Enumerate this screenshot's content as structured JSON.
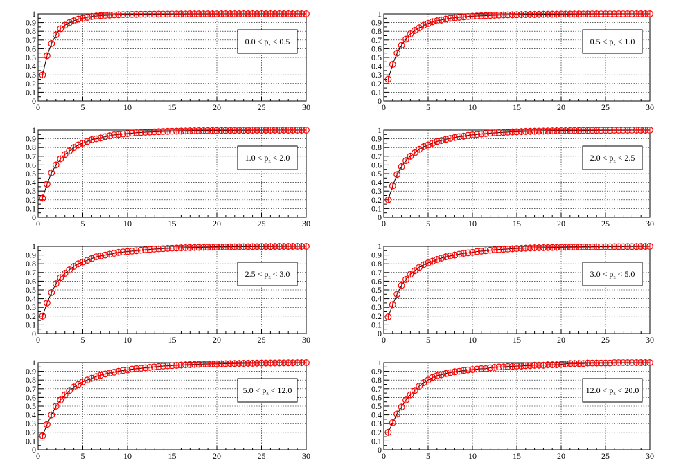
{
  "chart_data": [
    {
      "type": "line",
      "label_parts": [
        "0.0 < p",
        "z",
        " < 0.5"
      ],
      "xlim": [
        0,
        30
      ],
      "ylim": [
        0,
        1
      ],
      "x_ticks": [
        "0",
        "5",
        "10",
        "15",
        "20",
        "25",
        "30"
      ],
      "y_ticks": [
        "0",
        "0.1",
        "0.2",
        "0.3",
        "0.4",
        "0.5",
        "0.6",
        "0.7",
        "0.8",
        "0.9",
        "1"
      ],
      "grid": true,
      "legend_position": "right",
      "marker_color": "#ff0000",
      "x": [
        0.5,
        1,
        1.5,
        2,
        2.5,
        3,
        3.5,
        4,
        4.5,
        5,
        5.5,
        6,
        6.5,
        7,
        7.5,
        8,
        8.5,
        9,
        9.5,
        10,
        10.5,
        11,
        11.5,
        12,
        12.5,
        13,
        13.5,
        14,
        14.5,
        15,
        15.5,
        16,
        16.5,
        17,
        17.5,
        18,
        18.5,
        19,
        19.5,
        20,
        20.5,
        21,
        21.5,
        22,
        22.5,
        23,
        23.5,
        24,
        24.5,
        25,
        25.5,
        26,
        26.5,
        27,
        27.5,
        28,
        28.5,
        29,
        29.5,
        30
      ],
      "y": [
        0.3,
        0.52,
        0.66,
        0.76,
        0.83,
        0.87,
        0.9,
        0.92,
        0.94,
        0.95,
        0.96,
        0.97,
        0.975,
        0.98,
        0.983,
        0.986,
        0.988,
        0.99,
        0.991,
        0.992,
        0.993,
        0.994,
        0.995,
        0.995,
        0.996,
        0.996,
        0.997,
        0.997,
        0.997,
        0.998,
        0.998,
        0.998,
        0.998,
        0.999,
        0.999,
        0.999,
        0.999,
        0.999,
        0.999,
        0.999,
        1,
        1,
        1,
        1,
        1,
        1,
        1,
        1,
        1,
        1,
        1,
        1,
        1,
        1,
        1,
        1,
        1,
        1,
        1,
        1
      ]
    },
    {
      "type": "line",
      "label_parts": [
        "0.5 < p",
        "z",
        " < 1.0"
      ],
      "xlim": [
        0,
        30
      ],
      "ylim": [
        0,
        1
      ],
      "x_ticks": [
        "0",
        "5",
        "10",
        "15",
        "20",
        "25",
        "30"
      ],
      "y_ticks": [
        "0",
        "0.1",
        "0.2",
        "0.3",
        "0.4",
        "0.5",
        "0.6",
        "0.7",
        "0.8",
        "0.9",
        "1"
      ],
      "grid": true,
      "legend_position": "right",
      "marker_color": "#ff0000",
      "x": [
        0.5,
        1,
        1.5,
        2,
        2.5,
        3,
        3.5,
        4,
        4.5,
        5,
        5.5,
        6,
        6.5,
        7,
        7.5,
        8,
        8.5,
        9,
        9.5,
        10,
        10.5,
        11,
        11.5,
        12,
        12.5,
        13,
        13.5,
        14,
        14.5,
        15,
        15.5,
        16,
        16.5,
        17,
        17.5,
        18,
        18.5,
        19,
        19.5,
        20,
        20.5,
        21,
        21.5,
        22,
        22.5,
        23,
        23.5,
        24,
        24.5,
        25,
        25.5,
        26,
        26.5,
        27,
        27.5,
        28,
        28.5,
        29,
        29.5,
        30
      ],
      "y": [
        0.25,
        0.42,
        0.55,
        0.64,
        0.71,
        0.77,
        0.81,
        0.84,
        0.87,
        0.89,
        0.91,
        0.92,
        0.93,
        0.94,
        0.95,
        0.955,
        0.96,
        0.965,
        0.97,
        0.973,
        0.976,
        0.978,
        0.98,
        0.982,
        0.984,
        0.986,
        0.987,
        0.988,
        0.989,
        0.99,
        0.991,
        0.992,
        0.993,
        0.993,
        0.994,
        0.995,
        0.995,
        0.996,
        0.996,
        0.997,
        0.997,
        0.997,
        0.998,
        0.998,
        0.998,
        0.998,
        0.999,
        0.999,
        0.999,
        0.999,
        0.999,
        0.999,
        1,
        1,
        1,
        1,
        1,
        1,
        1,
        1
      ]
    },
    {
      "type": "line",
      "label_parts": [
        "1.0 < p",
        "z",
        " < 2.0"
      ],
      "xlim": [
        0,
        30
      ],
      "ylim": [
        0,
        1
      ],
      "x_ticks": [
        "0",
        "5",
        "10",
        "15",
        "20",
        "25",
        "30"
      ],
      "y_ticks": [
        "0",
        "0.1",
        "0.2",
        "0.3",
        "0.4",
        "0.5",
        "0.6",
        "0.7",
        "0.8",
        "0.9",
        "1"
      ],
      "grid": true,
      "legend_position": "right",
      "marker_color": "#ff0000",
      "x": [
        0.5,
        1,
        1.5,
        2,
        2.5,
        3,
        3.5,
        4,
        4.5,
        5,
        5.5,
        6,
        6.5,
        7,
        7.5,
        8,
        8.5,
        9,
        9.5,
        10,
        10.5,
        11,
        11.5,
        12,
        12.5,
        13,
        13.5,
        14,
        14.5,
        15,
        15.5,
        16,
        16.5,
        17,
        17.5,
        18,
        18.5,
        19,
        19.5,
        20,
        20.5,
        21,
        21.5,
        22,
        22.5,
        23,
        23.5,
        24,
        24.5,
        25,
        25.5,
        26,
        26.5,
        27,
        27.5,
        28,
        28.5,
        29,
        29.5,
        30
      ],
      "y": [
        0.22,
        0.38,
        0.51,
        0.6,
        0.67,
        0.72,
        0.76,
        0.8,
        0.83,
        0.85,
        0.87,
        0.89,
        0.9,
        0.91,
        0.925,
        0.935,
        0.945,
        0.95,
        0.955,
        0.96,
        0.965,
        0.97,
        0.973,
        0.976,
        0.978,
        0.98,
        0.982,
        0.984,
        0.986,
        0.987,
        0.988,
        0.989,
        0.99,
        0.991,
        0.992,
        0.993,
        0.993,
        0.994,
        0.995,
        0.995,
        0.996,
        0.996,
        0.997,
        0.997,
        0.998,
        0.998,
        0.998,
        0.999,
        0.999,
        0.999,
        0.999,
        1,
        1,
        1,
        1,
        1,
        1,
        1,
        1,
        1
      ]
    },
    {
      "type": "line",
      "label_parts": [
        "2.0 < p",
        "z",
        " < 2.5"
      ],
      "xlim": [
        0,
        30
      ],
      "ylim": [
        0,
        1
      ],
      "x_ticks": [
        "0",
        "5",
        "10",
        "15",
        "20",
        "25",
        "30"
      ],
      "y_ticks": [
        "0",
        "0.1",
        "0.2",
        "0.3",
        "0.4",
        "0.5",
        "0.6",
        "0.7",
        "0.8",
        "0.9",
        "1"
      ],
      "grid": true,
      "legend_position": "right",
      "marker_color": "#ff0000",
      "x": [
        0.5,
        1,
        1.5,
        2,
        2.5,
        3,
        3.5,
        4,
        4.5,
        5,
        5.5,
        6,
        6.5,
        7,
        7.5,
        8,
        8.5,
        9,
        9.5,
        10,
        10.5,
        11,
        11.5,
        12,
        12.5,
        13,
        13.5,
        14,
        14.5,
        15,
        15.5,
        16,
        16.5,
        17,
        17.5,
        18,
        18.5,
        19,
        19.5,
        20,
        20.5,
        21,
        21.5,
        22,
        22.5,
        23,
        23.5,
        24,
        24.5,
        25,
        25.5,
        26,
        26.5,
        27,
        27.5,
        28,
        28.5,
        29,
        29.5,
        30
      ],
      "y": [
        0.2,
        0.36,
        0.49,
        0.58,
        0.65,
        0.7,
        0.74,
        0.78,
        0.81,
        0.83,
        0.85,
        0.87,
        0.88,
        0.895,
        0.905,
        0.915,
        0.925,
        0.93,
        0.94,
        0.945,
        0.95,
        0.955,
        0.96,
        0.965,
        0.968,
        0.971,
        0.974,
        0.977,
        0.979,
        0.981,
        0.983,
        0.985,
        0.986,
        0.987,
        0.988,
        0.989,
        0.99,
        0.991,
        0.992,
        0.993,
        0.993,
        0.994,
        0.995,
        0.995,
        0.996,
        0.996,
        0.997,
        0.997,
        0.998,
        0.998,
        0.998,
        0.999,
        0.999,
        0.999,
        0.999,
        1,
        1,
        1,
        1,
        1
      ]
    },
    {
      "type": "line",
      "label_parts": [
        "2.5 < p",
        "z",
        " < 3.0"
      ],
      "xlim": [
        0,
        30
      ],
      "ylim": [
        0,
        1
      ],
      "x_ticks": [
        "0",
        "5",
        "10",
        "15",
        "20",
        "25",
        "30"
      ],
      "y_ticks": [
        "0",
        "0.1",
        "0.2",
        "0.3",
        "0.4",
        "0.5",
        "0.6",
        "0.7",
        "0.8",
        "0.9",
        "1"
      ],
      "grid": true,
      "legend_position": "right",
      "marker_color": "#ff0000",
      "x": [
        0.5,
        1,
        1.5,
        2,
        2.5,
        3,
        3.5,
        4,
        4.5,
        5,
        5.5,
        6,
        6.5,
        7,
        7.5,
        8,
        8.5,
        9,
        9.5,
        10,
        10.5,
        11,
        11.5,
        12,
        12.5,
        13,
        13.5,
        14,
        14.5,
        15,
        15.5,
        16,
        16.5,
        17,
        17.5,
        18,
        18.5,
        19,
        19.5,
        20,
        20.5,
        21,
        21.5,
        22,
        22.5,
        23,
        23.5,
        24,
        24.5,
        25,
        25.5,
        26,
        26.5,
        27,
        27.5,
        28,
        28.5,
        29,
        29.5,
        30
      ],
      "y": [
        0.2,
        0.35,
        0.47,
        0.57,
        0.64,
        0.69,
        0.73,
        0.77,
        0.8,
        0.82,
        0.84,
        0.86,
        0.88,
        0.89,
        0.9,
        0.91,
        0.92,
        0.93,
        0.935,
        0.94,
        0.945,
        0.95,
        0.955,
        0.96,
        0.964,
        0.968,
        0.971,
        0.974,
        0.977,
        0.979,
        0.981,
        0.983,
        0.985,
        0.986,
        0.987,
        0.988,
        0.989,
        0.99,
        0.991,
        0.992,
        0.993,
        0.993,
        0.994,
        0.995,
        0.995,
        0.996,
        0.996,
        0.997,
        0.997,
        0.998,
        0.998,
        0.998,
        0.999,
        0.999,
        0.999,
        0.999,
        1,
        1,
        1,
        1
      ]
    },
    {
      "type": "line",
      "label_parts": [
        "3.0 < p",
        "z",
        " < 5.0"
      ],
      "xlim": [
        0,
        30
      ],
      "ylim": [
        0,
        1
      ],
      "x_ticks": [
        "0",
        "5",
        "10",
        "15",
        "20",
        "25",
        "30"
      ],
      "y_ticks": [
        "0",
        "0.1",
        "0.2",
        "0.3",
        "0.4",
        "0.5",
        "0.6",
        "0.7",
        "0.8",
        "0.9",
        "1"
      ],
      "grid": true,
      "legend_position": "right",
      "marker_color": "#ff0000",
      "x": [
        0.5,
        1,
        1.5,
        2,
        2.5,
        3,
        3.5,
        4,
        4.5,
        5,
        5.5,
        6,
        6.5,
        7,
        7.5,
        8,
        8.5,
        9,
        9.5,
        10,
        10.5,
        11,
        11.5,
        12,
        12.5,
        13,
        13.5,
        14,
        14.5,
        15,
        15.5,
        16,
        16.5,
        17,
        17.5,
        18,
        18.5,
        19,
        19.5,
        20,
        20.5,
        21,
        21.5,
        22,
        22.5,
        23,
        23.5,
        24,
        24.5,
        25,
        25.5,
        26,
        26.5,
        27,
        27.5,
        28,
        28.5,
        29,
        29.5,
        30
      ],
      "y": [
        0.19,
        0.33,
        0.45,
        0.55,
        0.62,
        0.68,
        0.72,
        0.76,
        0.79,
        0.81,
        0.83,
        0.85,
        0.865,
        0.88,
        0.89,
        0.9,
        0.91,
        0.92,
        0.925,
        0.93,
        0.94,
        0.945,
        0.95,
        0.955,
        0.96,
        0.963,
        0.966,
        0.969,
        0.972,
        0.975,
        0.977,
        0.979,
        0.981,
        0.983,
        0.984,
        0.985,
        0.986,
        0.987,
        0.988,
        0.989,
        0.99,
        0.991,
        0.991,
        0.992,
        0.993,
        0.993,
        0.994,
        0.995,
        0.995,
        0.996,
        0.996,
        0.997,
        0.997,
        0.997,
        0.998,
        0.998,
        0.998,
        0.999,
        0.999,
        1
      ]
    },
    {
      "type": "line",
      "label_parts": [
        "5.0 < p",
        "z",
        " < 12.0"
      ],
      "xlim": [
        0,
        30
      ],
      "ylim": [
        0,
        1
      ],
      "x_ticks": [
        "0",
        "5",
        "10",
        "15",
        "20",
        "25",
        "30"
      ],
      "y_ticks": [
        "0",
        "0.1",
        "0.2",
        "0.3",
        "0.4",
        "0.5",
        "0.6",
        "0.7",
        "0.8",
        "0.9",
        "1"
      ],
      "grid": true,
      "legend_position": "right",
      "marker_color": "#ff0000",
      "x": [
        0.5,
        1,
        1.5,
        2,
        2.5,
        3,
        3.5,
        4,
        4.5,
        5,
        5.5,
        6,
        6.5,
        7,
        7.5,
        8,
        8.5,
        9,
        9.5,
        10,
        10.5,
        11,
        11.5,
        12,
        12.5,
        13,
        13.5,
        14,
        14.5,
        15,
        15.5,
        16,
        16.5,
        17,
        17.5,
        18,
        18.5,
        19,
        19.5,
        20,
        20.5,
        21,
        21.5,
        22,
        22.5,
        23,
        23.5,
        24,
        24.5,
        25,
        25.5,
        26,
        26.5,
        27,
        27.5,
        28,
        28.5,
        29,
        29.5,
        30
      ],
      "y": [
        0.16,
        0.29,
        0.4,
        0.5,
        0.57,
        0.63,
        0.68,
        0.72,
        0.75,
        0.78,
        0.8,
        0.82,
        0.84,
        0.855,
        0.87,
        0.88,
        0.89,
        0.9,
        0.91,
        0.915,
        0.925,
        0.93,
        0.935,
        0.94,
        0.945,
        0.95,
        0.955,
        0.96,
        0.963,
        0.966,
        0.969,
        0.972,
        0.975,
        0.977,
        0.979,
        0.981,
        0.983,
        0.984,
        0.985,
        0.986,
        0.987,
        0.988,
        0.989,
        0.99,
        0.991,
        0.992,
        0.993,
        0.993,
        0.994,
        0.995,
        0.995,
        0.996,
        0.996,
        0.997,
        0.997,
        0.998,
        0.998,
        0.999,
        0.999,
        1
      ]
    },
    {
      "type": "line",
      "label_parts": [
        "12.0 < p",
        "z",
        " < 20.0"
      ],
      "xlim": [
        0,
        30
      ],
      "ylim": [
        0,
        1
      ],
      "x_ticks": [
        "0",
        "5",
        "10",
        "15",
        "20",
        "25",
        "30"
      ],
      "y_ticks": [
        "0",
        "0.1",
        "0.2",
        "0.3",
        "0.4",
        "0.5",
        "0.6",
        "0.7",
        "0.8",
        "0.9",
        "1"
      ],
      "grid": true,
      "legend_position": "right",
      "marker_color": "#ff0000",
      "x": [
        0.5,
        1,
        1.5,
        2,
        2.5,
        3,
        3.5,
        4,
        4.5,
        5,
        5.5,
        6,
        6.5,
        7,
        7.5,
        8,
        8.5,
        9,
        9.5,
        10,
        10.5,
        11,
        11.5,
        12,
        12.5,
        13,
        13.5,
        14,
        14.5,
        15,
        15.5,
        16,
        16.5,
        17,
        17.5,
        18,
        18.5,
        19,
        19.5,
        20,
        20.5,
        21,
        21.5,
        22,
        22.5,
        23,
        23.5,
        24,
        24.5,
        25,
        25.5,
        26,
        26.5,
        27,
        27.5,
        28,
        28.5,
        29,
        29.5,
        30
      ],
      "y": [
        0.2,
        0.31,
        0.41,
        0.49,
        0.57,
        0.63,
        0.68,
        0.73,
        0.77,
        0.8,
        0.83,
        0.85,
        0.86,
        0.875,
        0.885,
        0.895,
        0.9,
        0.91,
        0.915,
        0.92,
        0.925,
        0.93,
        0.93,
        0.94,
        0.945,
        0.95,
        0.95,
        0.955,
        0.955,
        0.96,
        0.96,
        0.965,
        0.965,
        0.97,
        0.97,
        0.97,
        0.975,
        0.975,
        0.975,
        0.98,
        0.985,
        0.99,
        0.99,
        0.99,
        0.99,
        0.995,
        0.995,
        0.995,
        0.995,
        0.995,
        0.995,
        1,
        1,
        1,
        1,
        1,
        1,
        1,
        1,
        1
      ]
    }
  ]
}
